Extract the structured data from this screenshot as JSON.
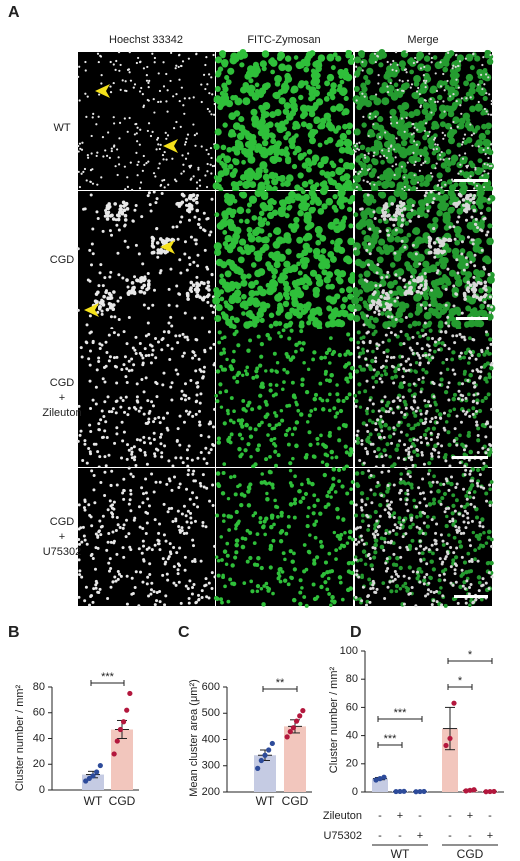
{
  "panel_a": {
    "panel_label": "A",
    "columns": [
      "Hoechst 33342",
      "FITC-Zymosan",
      "Merge"
    ],
    "rows": [
      [
        "WT"
      ],
      [
        "CGD"
      ],
      [
        "CGD",
        "+",
        "Zileuton"
      ],
      [
        "CGD",
        "+",
        "U75302"
      ]
    ]
  },
  "chart_data": [
    {
      "type": "bar",
      "panel_label": "B",
      "ylabel": "Cluster number / mm²",
      "categories": [
        "WT",
        "CGD"
      ],
      "values": [
        12,
        47
      ],
      "errors": [
        2.5,
        7
      ],
      "points": [
        [
          7,
          9,
          11,
          14,
          19
        ],
        [
          28,
          38,
          47,
          53,
          62,
          75
        ]
      ],
      "colors": [
        "#c5cbe3",
        "#f2c6bd"
      ],
      "point_colors": [
        "#2d4b9a",
        "#b3173d"
      ],
      "ylim": [
        0,
        80
      ],
      "yticks": [
        0,
        20,
        40,
        60,
        80
      ],
      "significance": [
        "***"
      ]
    },
    {
      "type": "bar",
      "panel_label": "C",
      "ylabel": "Mean cluster area (μm²)",
      "categories": [
        "WT",
        "CGD"
      ],
      "values": [
        340,
        450
      ],
      "errors": [
        20,
        25
      ],
      "points": [
        [
          290,
          320,
          340,
          360,
          385
        ],
        [
          410,
          430,
          445,
          470,
          490,
          510
        ]
      ],
      "colors": [
        "#c5cbe3",
        "#f2c6bd"
      ],
      "point_colors": [
        "#2d4b9a",
        "#b3173d"
      ],
      "ylim": [
        200,
        600
      ],
      "yticks": [
        200,
        300,
        400,
        500,
        600
      ],
      "significance": [
        "**"
      ]
    },
    {
      "type": "bar",
      "panel_label": "D",
      "ylabel": "Cluster number / mm²",
      "categories": [
        null,
        null,
        null,
        null,
        null,
        null
      ],
      "values": [
        9.5,
        0.4,
        0.3,
        45,
        1.2,
        0.3
      ],
      "errors": [
        0.8,
        0.2,
        0.1,
        15,
        0.7,
        0.1
      ],
      "points": [
        [
          8.5,
          9.5,
          10.5
        ],
        [
          0.3,
          0.4,
          0.5
        ],
        [
          0.2,
          0.3,
          0.4
        ],
        [
          33,
          38,
          63
        ],
        [
          0.8,
          1.2,
          1.6
        ],
        [
          0.2,
          0.3,
          0.4
        ]
      ],
      "colors": [
        "#c5cbe3",
        "#c5cbe3",
        "#c5cbe3",
        "#f2c6bd",
        "#f2c6bd",
        "#f2c6bd"
      ],
      "point_colors": [
        "#2d4b9a",
        "#2d4b9a",
        "#2d4b9a",
        "#b3173d",
        "#b3173d",
        "#b3173d"
      ],
      "ylim": [
        0,
        100
      ],
      "yticks": [
        0,
        20,
        40,
        60,
        80,
        100
      ],
      "significance": [
        "***",
        "***",
        "*",
        "*"
      ],
      "conditions": [
        {
          "name": "Zileuton",
          "signs": [
            "-",
            "+",
            "-",
            "-",
            "+",
            "-"
          ]
        },
        {
          "name": "U75302",
          "signs": [
            "-",
            "-",
            "+",
            "-",
            "-",
            "+"
          ]
        }
      ],
      "groups": [
        "WT",
        "CGD"
      ]
    }
  ]
}
